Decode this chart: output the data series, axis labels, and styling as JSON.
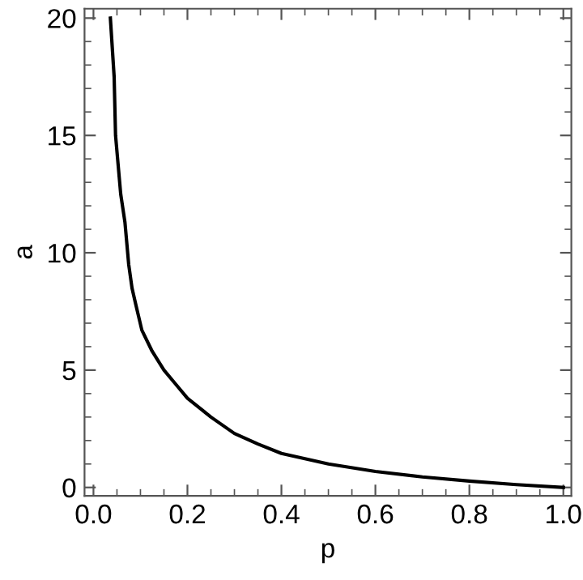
{
  "chart_data": {
    "type": "line",
    "xlabel": "p",
    "ylabel": "a",
    "x": [
      0.036,
      0.044,
      0.047,
      0.058,
      0.067,
      0.075,
      0.082,
      0.09,
      0.103,
      0.125,
      0.15,
      0.175,
      0.2,
      0.25,
      0.3,
      0.35,
      0.4,
      0.5,
      0.6,
      0.7,
      0.8,
      0.9,
      1.0
    ],
    "series": [
      {
        "color": "#000000",
        "values": [
          20,
          17.5,
          15,
          12.5,
          11.3,
          9.5,
          8.5,
          7.8,
          6.7,
          5.8,
          5.0,
          4.4,
          3.8,
          3.0,
          2.3,
          1.85,
          1.45,
          1.0,
          0.68,
          0.45,
          0.27,
          0.12,
          0.0
        ]
      }
    ],
    "xlim": [
      -0.019,
      1.017
    ],
    "ylim": [
      -0.36,
      20.4
    ],
    "xticks": [
      {
        "value": 0,
        "label": "0.0"
      },
      {
        "value": 0.2,
        "label": "0.2"
      },
      {
        "value": 0.4,
        "label": "0.4"
      },
      {
        "value": 0.6,
        "label": "0.6"
      },
      {
        "value": 0.8,
        "label": "0.8"
      },
      {
        "value": 1,
        "label": "1.0"
      }
    ],
    "yticks": [
      0,
      5,
      10,
      15,
      20
    ],
    "grid": false,
    "legend": false,
    "marker": "none",
    "line_style": "solid"
  }
}
